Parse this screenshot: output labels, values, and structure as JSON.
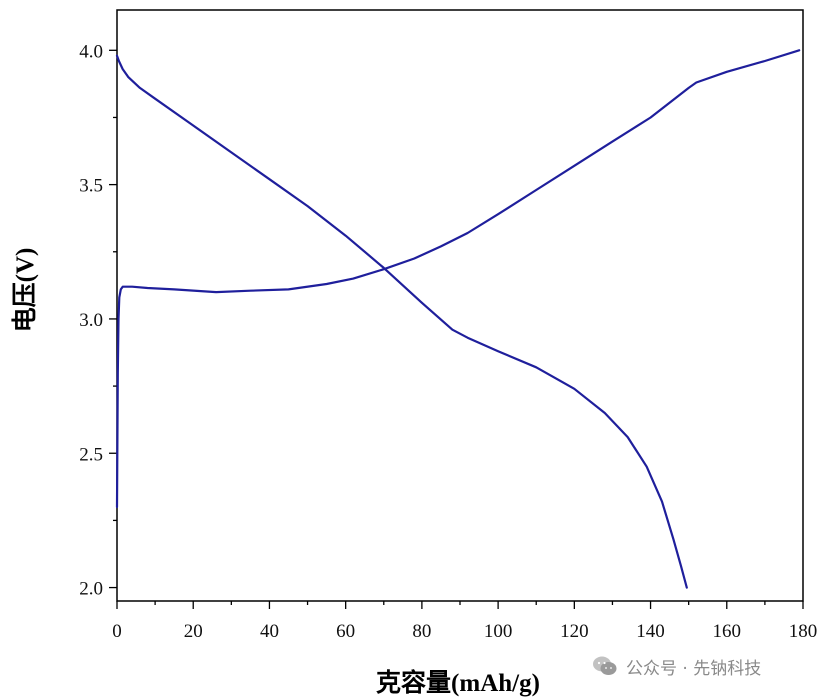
{
  "chart_data": {
    "type": "line",
    "title": "",
    "xlabel": "克容量(mAh/g)",
    "ylabel": "电压(V)",
    "xlim": [
      0,
      180
    ],
    "ylim": [
      1.95,
      4.15
    ],
    "xticks": [
      0,
      20,
      40,
      60,
      80,
      100,
      120,
      140,
      160,
      180
    ],
    "yticks": [
      2.0,
      2.5,
      3.0,
      3.5,
      4.0
    ],
    "xtick_labels": [
      "0",
      "20",
      "40",
      "60",
      "80",
      "100",
      "120",
      "140",
      "160",
      "180"
    ],
    "ytick_labels": [
      "2.0",
      "2.5",
      "3.0",
      "3.5",
      "4.0"
    ],
    "grid": false,
    "legend": "none",
    "line_color": "#1f1f9c",
    "series": [
      {
        "x": [
          0,
          0.2,
          0.4,
          0.6,
          1,
          1.5,
          2,
          4,
          8,
          15,
          26,
          35,
          45,
          55,
          62,
          70,
          78,
          85,
          92,
          100,
          110,
          120,
          130,
          140,
          150,
          152,
          160,
          170,
          179
        ],
        "y": [
          2.3,
          2.8,
          3.0,
          3.08,
          3.11,
          3.12,
          3.12,
          3.12,
          3.115,
          3.11,
          3.1,
          3.105,
          3.11,
          3.13,
          3.15,
          3.185,
          3.225,
          3.27,
          3.32,
          3.39,
          3.48,
          3.57,
          3.66,
          3.75,
          3.86,
          3.88,
          3.92,
          3.96,
          4.0
        ]
      },
      {
        "x": [
          0,
          0.5,
          1.5,
          3,
          6,
          10,
          20,
          30,
          40,
          50,
          60,
          70,
          80,
          88,
          92,
          100,
          110,
          120,
          128,
          134,
          139,
          143,
          146,
          148,
          149.5
        ],
        "y": [
          3.98,
          3.96,
          3.93,
          3.9,
          3.86,
          3.82,
          3.72,
          3.62,
          3.52,
          3.42,
          3.31,
          3.19,
          3.06,
          2.96,
          2.93,
          2.88,
          2.82,
          2.74,
          2.65,
          2.56,
          2.45,
          2.32,
          2.18,
          2.08,
          2.0
        ]
      }
    ]
  },
  "watermark": {
    "text": "公众号 · 先钠科技",
    "icon": "wechat-icon"
  }
}
